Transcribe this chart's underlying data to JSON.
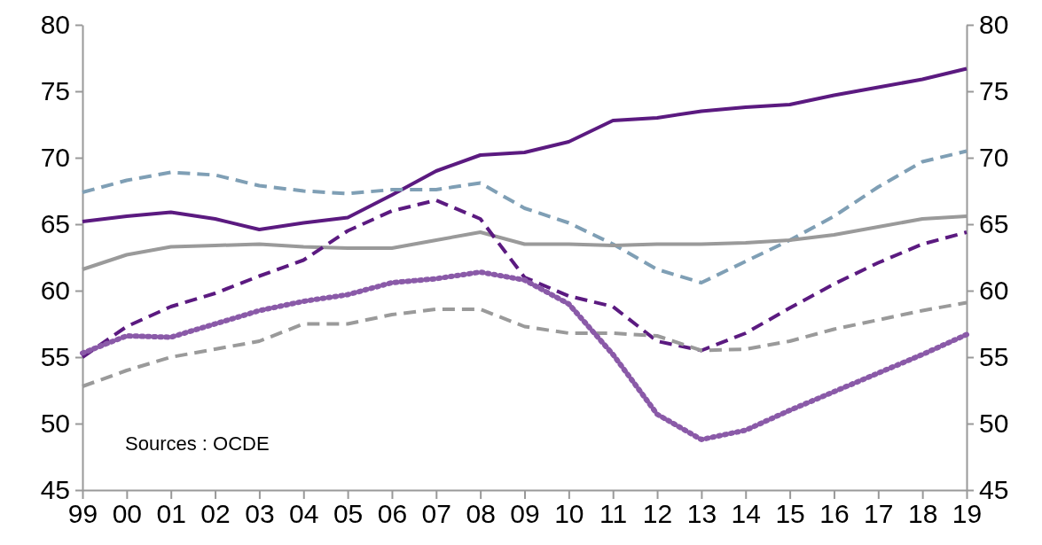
{
  "chart_data": {
    "type": "line",
    "categories": [
      "99",
      "00",
      "01",
      "02",
      "03",
      "04",
      "05",
      "06",
      "07",
      "08",
      "09",
      "10",
      "11",
      "12",
      "13",
      "14",
      "15",
      "16",
      "17",
      "18",
      "19"
    ],
    "series": [
      {
        "color": "#5b1a80",
        "line_style": "solid",
        "values": [
          65.2,
          65.6,
          65.9,
          65.4,
          64.6,
          65.1,
          65.5,
          67.2,
          69.0,
          70.2,
          70.4,
          71.2,
          72.8,
          73.0,
          73.5,
          73.8,
          74.0,
          74.7,
          75.3,
          75.9,
          76.7
        ]
      },
      {
        "color": "#7f9fb5",
        "line_style": "dashed",
        "values": [
          67.4,
          68.3,
          68.9,
          68.7,
          67.9,
          67.5,
          67.3,
          67.6,
          67.6,
          68.1,
          66.2,
          65.1,
          63.5,
          61.6,
          60.6,
          62.2,
          63.8,
          65.6,
          67.8,
          69.7,
          70.5
        ]
      },
      {
        "color": "#9a9a9a",
        "line_style": "solid",
        "values": [
          61.6,
          62.7,
          63.3,
          63.4,
          63.5,
          63.3,
          63.2,
          63.2,
          63.8,
          64.4,
          63.5,
          63.5,
          63.4,
          63.5,
          63.5,
          63.6,
          63.8,
          64.2,
          64.8,
          65.4,
          65.6
        ]
      },
      {
        "color": "#5b1a80",
        "line_style": "dashed",
        "values": [
          55.0,
          57.3,
          58.8,
          59.8,
          61.1,
          62.3,
          64.5,
          66.0,
          66.8,
          65.4,
          61.0,
          59.6,
          58.8,
          56.2,
          55.5,
          56.8,
          58.7,
          60.5,
          62.1,
          63.5,
          64.4
        ]
      },
      {
        "color": "#9a9a9a",
        "line_style": "dashed",
        "values": [
          52.8,
          54.0,
          55.0,
          55.6,
          56.2,
          57.5,
          57.5,
          58.2,
          58.6,
          58.6,
          57.3,
          56.8,
          56.8,
          56.6,
          55.5,
          55.6,
          56.2,
          57.1,
          57.8,
          58.5,
          59.1
        ]
      },
      {
        "color": "#8a5aa8",
        "line_style": "dotted",
        "values": [
          55.3,
          56.6,
          56.5,
          57.5,
          58.5,
          59.2,
          59.7,
          60.6,
          60.9,
          61.4,
          60.8,
          59.0,
          55.2,
          50.7,
          48.8,
          49.5,
          51.0,
          52.4,
          53.8,
          55.2,
          56.7
        ]
      }
    ],
    "ylim": [
      45,
      80
    ],
    "yticks": [
      45,
      50,
      55,
      60,
      65,
      70,
      75,
      80
    ],
    "y2lim": [
      45,
      80
    ],
    "y2ticks": [
      45,
      50,
      55,
      60,
      65,
      70,
      75,
      80
    ],
    "annotations": [
      "Sources : OCDE"
    ]
  }
}
